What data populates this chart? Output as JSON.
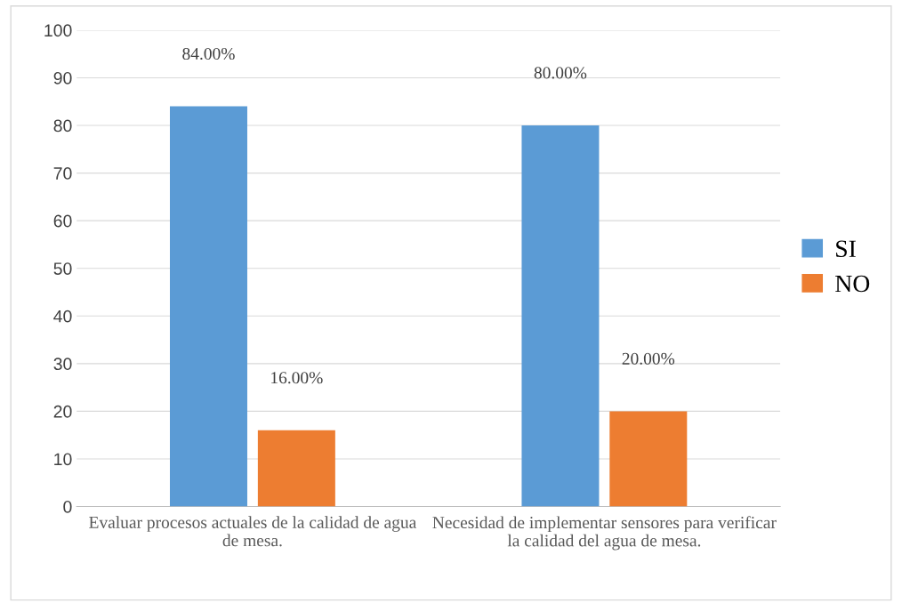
{
  "chart_data": {
    "type": "bar",
    "categories": [
      "Evaluar procesos actuales de la calidad de agua de mesa.",
      "Necesidad de implementar sensores para verificar la calidad del agua de mesa."
    ],
    "series": [
      {
        "name": "SI",
        "color": "#5b9bd5",
        "values": [
          84,
          80
        ],
        "value_labels": [
          "84.00%",
          "80.00%"
        ]
      },
      {
        "name": "NO",
        "color": "#ed7d31",
        "values": [
          16,
          20
        ],
        "value_labels": [
          "16.00%",
          "20.00%"
        ]
      }
    ],
    "ylim": [
      0,
      100
    ],
    "yticks": [
      0,
      10,
      20,
      30,
      40,
      50,
      60,
      70,
      80,
      90,
      100
    ],
    "grid": "y",
    "legend": "right"
  }
}
